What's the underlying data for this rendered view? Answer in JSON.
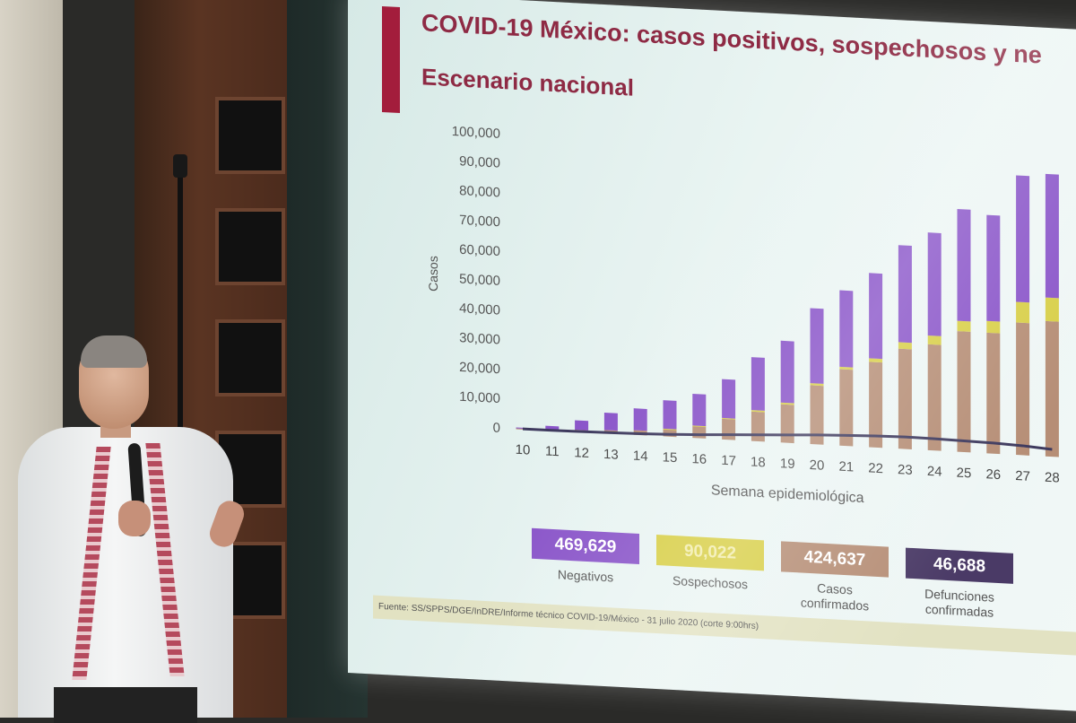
{
  "slide": {
    "title": "COVID-19 México: casos positivos, sospechosos y ne",
    "subtitle": "Escenario nacional",
    "accent_color": "#a31d3c",
    "source": "Fuente: SS/SPPS/DGE/InDRE/Informe técnico COVID-19/México - 31 julio 2020 (corte 9:00hrs)"
  },
  "summary": [
    {
      "value": "469,629",
      "label": "Negativos",
      "color": "#8a55c9"
    },
    {
      "value": "90,022",
      "label": "Sospechosos",
      "color": "#d8cf48"
    },
    {
      "value": "424,637",
      "label": "Casos confirmados",
      "color": "#b68e76"
    },
    {
      "value": "46,688",
      "label": "Defunciones confirmadas",
      "color": "#4a3a66"
    }
  ],
  "chart_data": {
    "type": "bar",
    "stacked": true,
    "categories": [
      "10",
      "11",
      "12",
      "13",
      "14",
      "15",
      "16",
      "17",
      "18",
      "19",
      "20",
      "21",
      "22",
      "23",
      "24",
      "25",
      "26",
      "27",
      "28"
    ],
    "y_ticks": [
      "100,000",
      "90,000",
      "80,000",
      "70,000",
      "60,000",
      "50,000",
      "40,000",
      "30,000",
      "20,000",
      "10,000",
      "0"
    ],
    "ylim": [
      0,
      100000
    ],
    "ylabel": "Casos",
    "xlabel": "Semana epidemiológica",
    "series": [
      {
        "name": "Confirmados",
        "color": "#b68e76",
        "values": [
          100,
          300,
          700,
          1100,
          1600,
          2500,
          4000,
          7000,
          10000,
          13000,
          20000,
          26000,
          29000,
          34000,
          36000,
          41000,
          41000,
          45000,
          46000
        ]
      },
      {
        "name": "Sospechosos",
        "color": "#d8cf48",
        "values": [
          0,
          0,
          0,
          0,
          0,
          100,
          200,
          300,
          500,
          600,
          700,
          800,
          1200,
          2200,
          3000,
          3500,
          4000,
          7000,
          8000
        ]
      },
      {
        "name": "Negativos",
        "color": "#8a55c9",
        "values": [
          300,
          1200,
          3200,
          5900,
          7400,
          9700,
          10800,
          13200,
          18000,
          21000,
          25500,
          26000,
          29000,
          33000,
          35000,
          38000,
          36000,
          43000,
          42000
        ]
      }
    ],
    "line": {
      "name": "Defunciones",
      "color": "#3e3a5e",
      "values": [
        10,
        50,
        150,
        300,
        500,
        800,
        1200,
        1700,
        2200,
        2700,
        3200,
        3600,
        3900,
        4100,
        4000,
        3800,
        3600,
        3200,
        2500
      ]
    },
    "grid": false,
    "legend": "none"
  }
}
